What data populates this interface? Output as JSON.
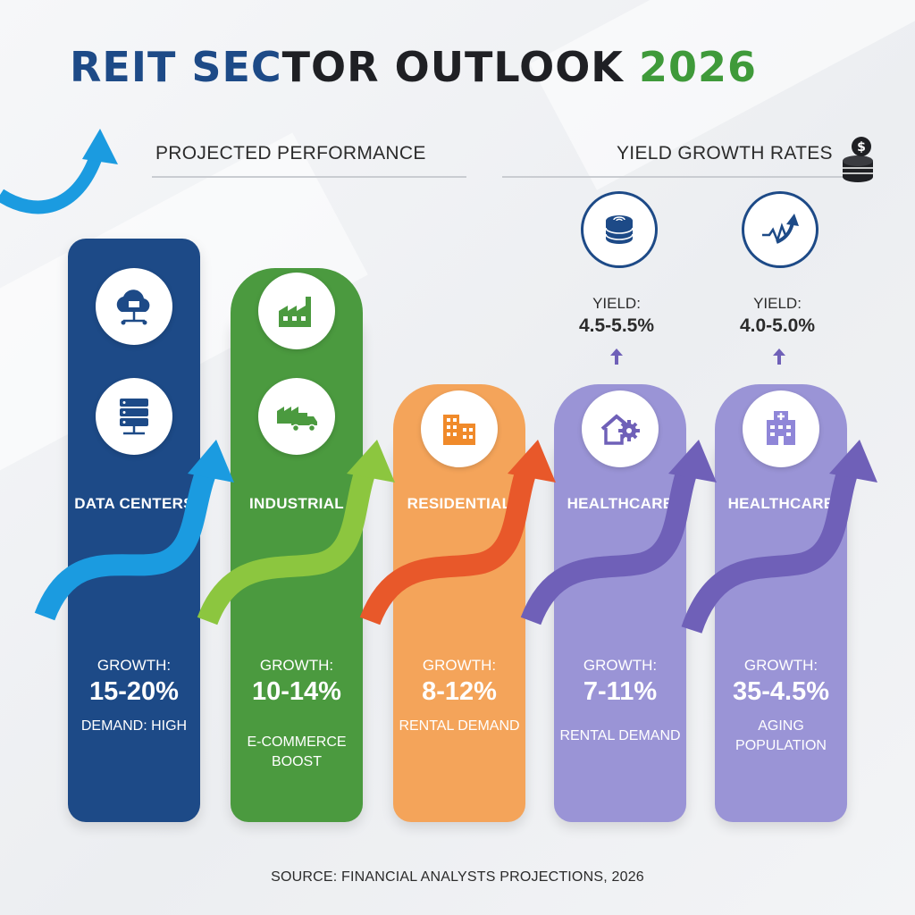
{
  "title": {
    "part1": "REIT SEC",
    "part2": "TOR OUTLOOK ",
    "part3": "2026",
    "color1": "#1d4a87",
    "color2": "#1f2024",
    "color3": "#3f9a3a"
  },
  "headings": {
    "left": "PROJECTED PERFORMANCE",
    "right": "YIELD GROWTH RATES"
  },
  "colors": {
    "blue": "#1d4a87",
    "green": "#4b9a3f",
    "orange": "#f4a45a",
    "purple": "#9a94d6",
    "arrow_blue": "#1b9be0",
    "arrow_green": "#8cc63f",
    "arrow_orange": "#e8582a",
    "arrow_purple": "#6f60b8"
  },
  "sectors": [
    {
      "name": "DATA CENTERS",
      "growth_label": "GROWTH:",
      "growth_value": "15-20%",
      "note": "DEMAND: HIGH",
      "icons": [
        "cloud-network-icon",
        "server-rack-icon"
      ]
    },
    {
      "name": "INDUSTRIAL",
      "growth_label": "GROWTH:",
      "growth_value": "10-14%",
      "note": "E-COMMERCE BOOST",
      "icons": [
        "factory-icon",
        "delivery-truck-icon"
      ]
    },
    {
      "name": "RESIDENTIAL",
      "growth_label": "GROWTH:",
      "growth_value": "8-12%",
      "note": "RENTAL DEMAND",
      "icons": [
        "apartment-buildings-icon"
      ]
    },
    {
      "name": "HEALTHCARE",
      "growth_label": "GROWTH:",
      "growth_value": "7-11%",
      "note": "RENTAL DEMAND",
      "icons": [
        "house-gear-icon"
      ],
      "yield_label": "YIELD:",
      "yield_value": "4.5-5.5%",
      "yield_icon": "coin-stack-icon"
    },
    {
      "name": "HEALTHCARE",
      "growth_label": "GROWTH:",
      "growth_value": "35-4.5%",
      "note": "AGING POPULATION",
      "icons": [
        "hospital-icon"
      ],
      "yield_label": "YIELD:",
      "yield_value": "4.0-5.0%",
      "yield_icon": "trend-arrow-icon"
    }
  ],
  "source": "SOURCE: FINANCIAL ANALYSTS PROJECTIONS, 2026"
}
